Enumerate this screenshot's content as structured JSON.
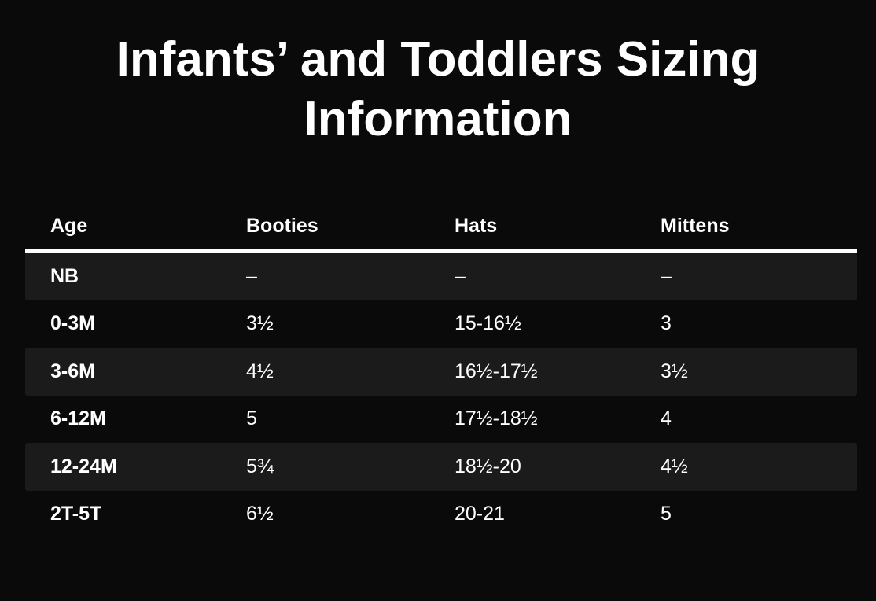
{
  "title": {
    "full": "Infants’ and Toddlers Sizing Information",
    "line1": "Infants’ and Toddlers Sizing",
    "line2": "Information"
  },
  "colors": {
    "background": "#0a0a0a",
    "row_stripe": "#1b1b1b",
    "text": "#ffffff",
    "header_rule": "#ffffff"
  },
  "chart_data": {
    "type": "table",
    "title": "Infants’ and Toddlers Sizing Information",
    "columns": [
      "Age",
      "Booties",
      "Hats",
      "Mittens"
    ],
    "rows": [
      [
        "NB",
        "–",
        "–",
        "–"
      ],
      [
        "0-3M",
        "3½",
        "15-16½",
        "3"
      ],
      [
        "3-6M",
        "4½",
        "16½-17½",
        "3½"
      ],
      [
        "6-12M",
        "5",
        "17½-18½",
        "4"
      ],
      [
        "12-24M",
        "5¾",
        "18½-20",
        "4½"
      ],
      [
        "2T-5T",
        "6½",
        "20-21",
        "5"
      ]
    ],
    "layout": {
      "striped_row_indices": [
        0,
        2,
        4
      ],
      "header_rule_thickness_px": 4
    }
  }
}
